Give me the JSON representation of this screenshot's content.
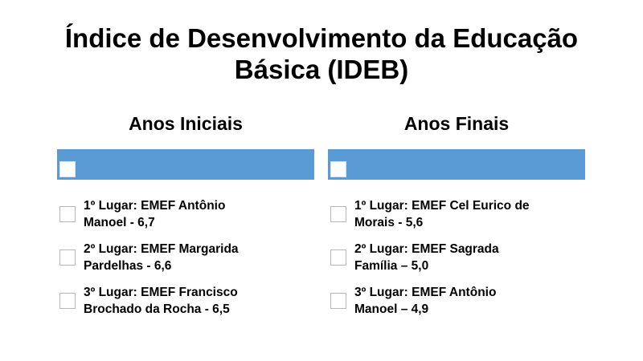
{
  "slide": {
    "title_line1": "Índice de Desenvolvimento da Educação",
    "title_line2": "Básica (IDEB)"
  },
  "columns": [
    {
      "heading": "Anos Iniciais",
      "items": [
        {
          "line1": "1º Lugar: EMEF Antônio",
          "line2": "Manoel - 6,7"
        },
        {
          "line1": "2º Lugar: EMEF Margarida",
          "line2": "Pardelhas - 6,6"
        },
        {
          "line1": "3º Lugar: EMEF Francisco",
          "line2": "Brochado da Rocha - 6,5"
        }
      ]
    },
    {
      "heading": "Anos Finais",
      "items": [
        {
          "line1": "1º Lugar: EMEF Cel Eurico de",
          "line2": "Morais - 5,6"
        },
        {
          "line1": "2º Lugar: EMEF Sagrada",
          "line2": "Família – 5,0"
        },
        {
          "line1": "3º Lugar: EMEF Antônio",
          "line2": "Manoel – 4,9"
        }
      ]
    }
  ],
  "colors": {
    "header_bar": "#5b9bd5",
    "text": "#000000",
    "background": "#ffffff"
  }
}
